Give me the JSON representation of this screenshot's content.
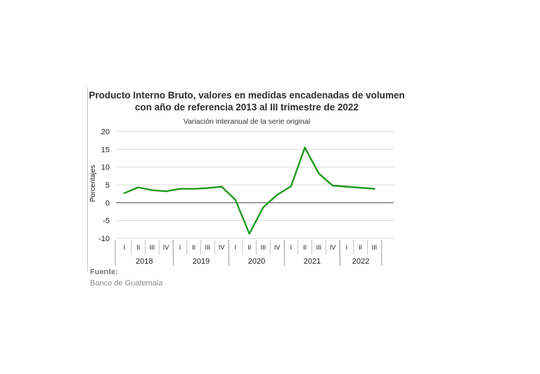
{
  "colors": {
    "line": "#1e9a1e",
    "grid": "#d9d9d9",
    "zero": "#555555",
    "text": "#1a1a1a"
  },
  "chart_data": {
    "type": "line",
    "title": "Producto Interno Bruto, valores en medidas encadenadas de volumen con año de referencia 2013 al III trimestre de 2022",
    "title_lines": [
      "Producto Interno Bruto, valores en medidas encadenadas de volumen",
      "con año de referencia 2013 al III trimestre de 2022"
    ],
    "subtitle": "Variación interanual de la serie original",
    "ylabel": "Porcentajes",
    "xlabel": "",
    "ylim": [
      -10,
      20
    ],
    "yticks": [
      20,
      15,
      10,
      5,
      0,
      -5,
      -10
    ],
    "grid": true,
    "quarters": [
      "I",
      "II",
      "III",
      "IV",
      "I",
      "II",
      "III",
      "IV",
      "I",
      "II",
      "III",
      "IV",
      "I",
      "II",
      "III",
      "IV",
      "I",
      "II",
      "III"
    ],
    "years": [
      "2018",
      "2019",
      "2020",
      "2021",
      "2022"
    ],
    "series": [
      {
        "values": [
          2.7,
          4.3,
          3.5,
          3.2,
          3.9,
          3.9,
          4.1,
          4.5,
          0.8,
          -8.7,
          -1.3,
          2.2,
          4.6,
          15.5,
          8.2,
          4.8,
          4.5,
          4.2,
          3.9
        ]
      }
    ]
  },
  "source": {
    "label": "Fuente:",
    "value": "Banco de Guatemala"
  }
}
